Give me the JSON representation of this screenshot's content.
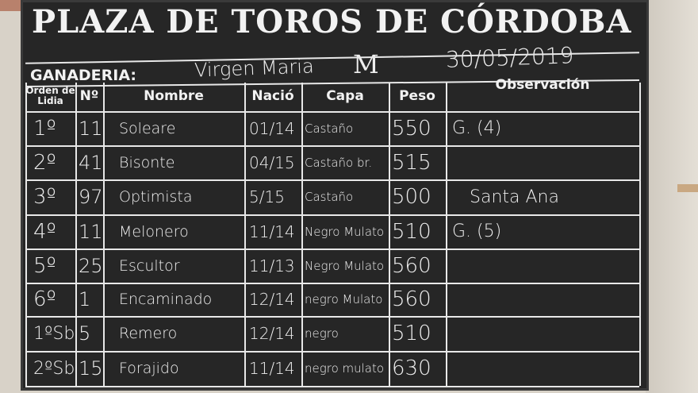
{
  "board": {
    "title": "PLAZA DE TOROS DE CÓRDOBA",
    "ganaderia_label": "GANADERIA:",
    "ganaderia_value": "Virgen Maria",
    "ganaderia_mark": "M",
    "date": "30/05/2019"
  },
  "table": {
    "headers": [
      "Orden de Lidia",
      "Nº",
      "Nombre",
      "Nació",
      "Capa",
      "Peso",
      "Observación"
    ],
    "rows": [
      [
        "1º",
        "11",
        "Soleare",
        "01/14",
        "Castaño",
        "550",
        "G. (4)"
      ],
      [
        "2º",
        "41",
        "Bisonte",
        "04/15",
        "Castaño br.",
        "515",
        ""
      ],
      [
        "3º",
        "97",
        "Optimista",
        "5/15",
        "Castaño",
        "500",
        "Santa Ana"
      ],
      [
        "4º",
        "11",
        "Melonero",
        "11/14",
        "Negro Mulato",
        "510",
        "G. (5)"
      ],
      [
        "5º",
        "25",
        "Escultor",
        "11/13",
        "Negro Mulato",
        "560",
        ""
      ],
      [
        "6º",
        "1",
        "Encaminado",
        "12/14",
        "negro Mulato",
        "560",
        ""
      ],
      [
        "1ºSb",
        "5",
        "Remero",
        "12/14",
        "negro",
        "510",
        ""
      ],
      [
        "2ºSb",
        "15",
        "Forajido",
        "11/14",
        "negro mulato",
        "630",
        ""
      ]
    ]
  }
}
